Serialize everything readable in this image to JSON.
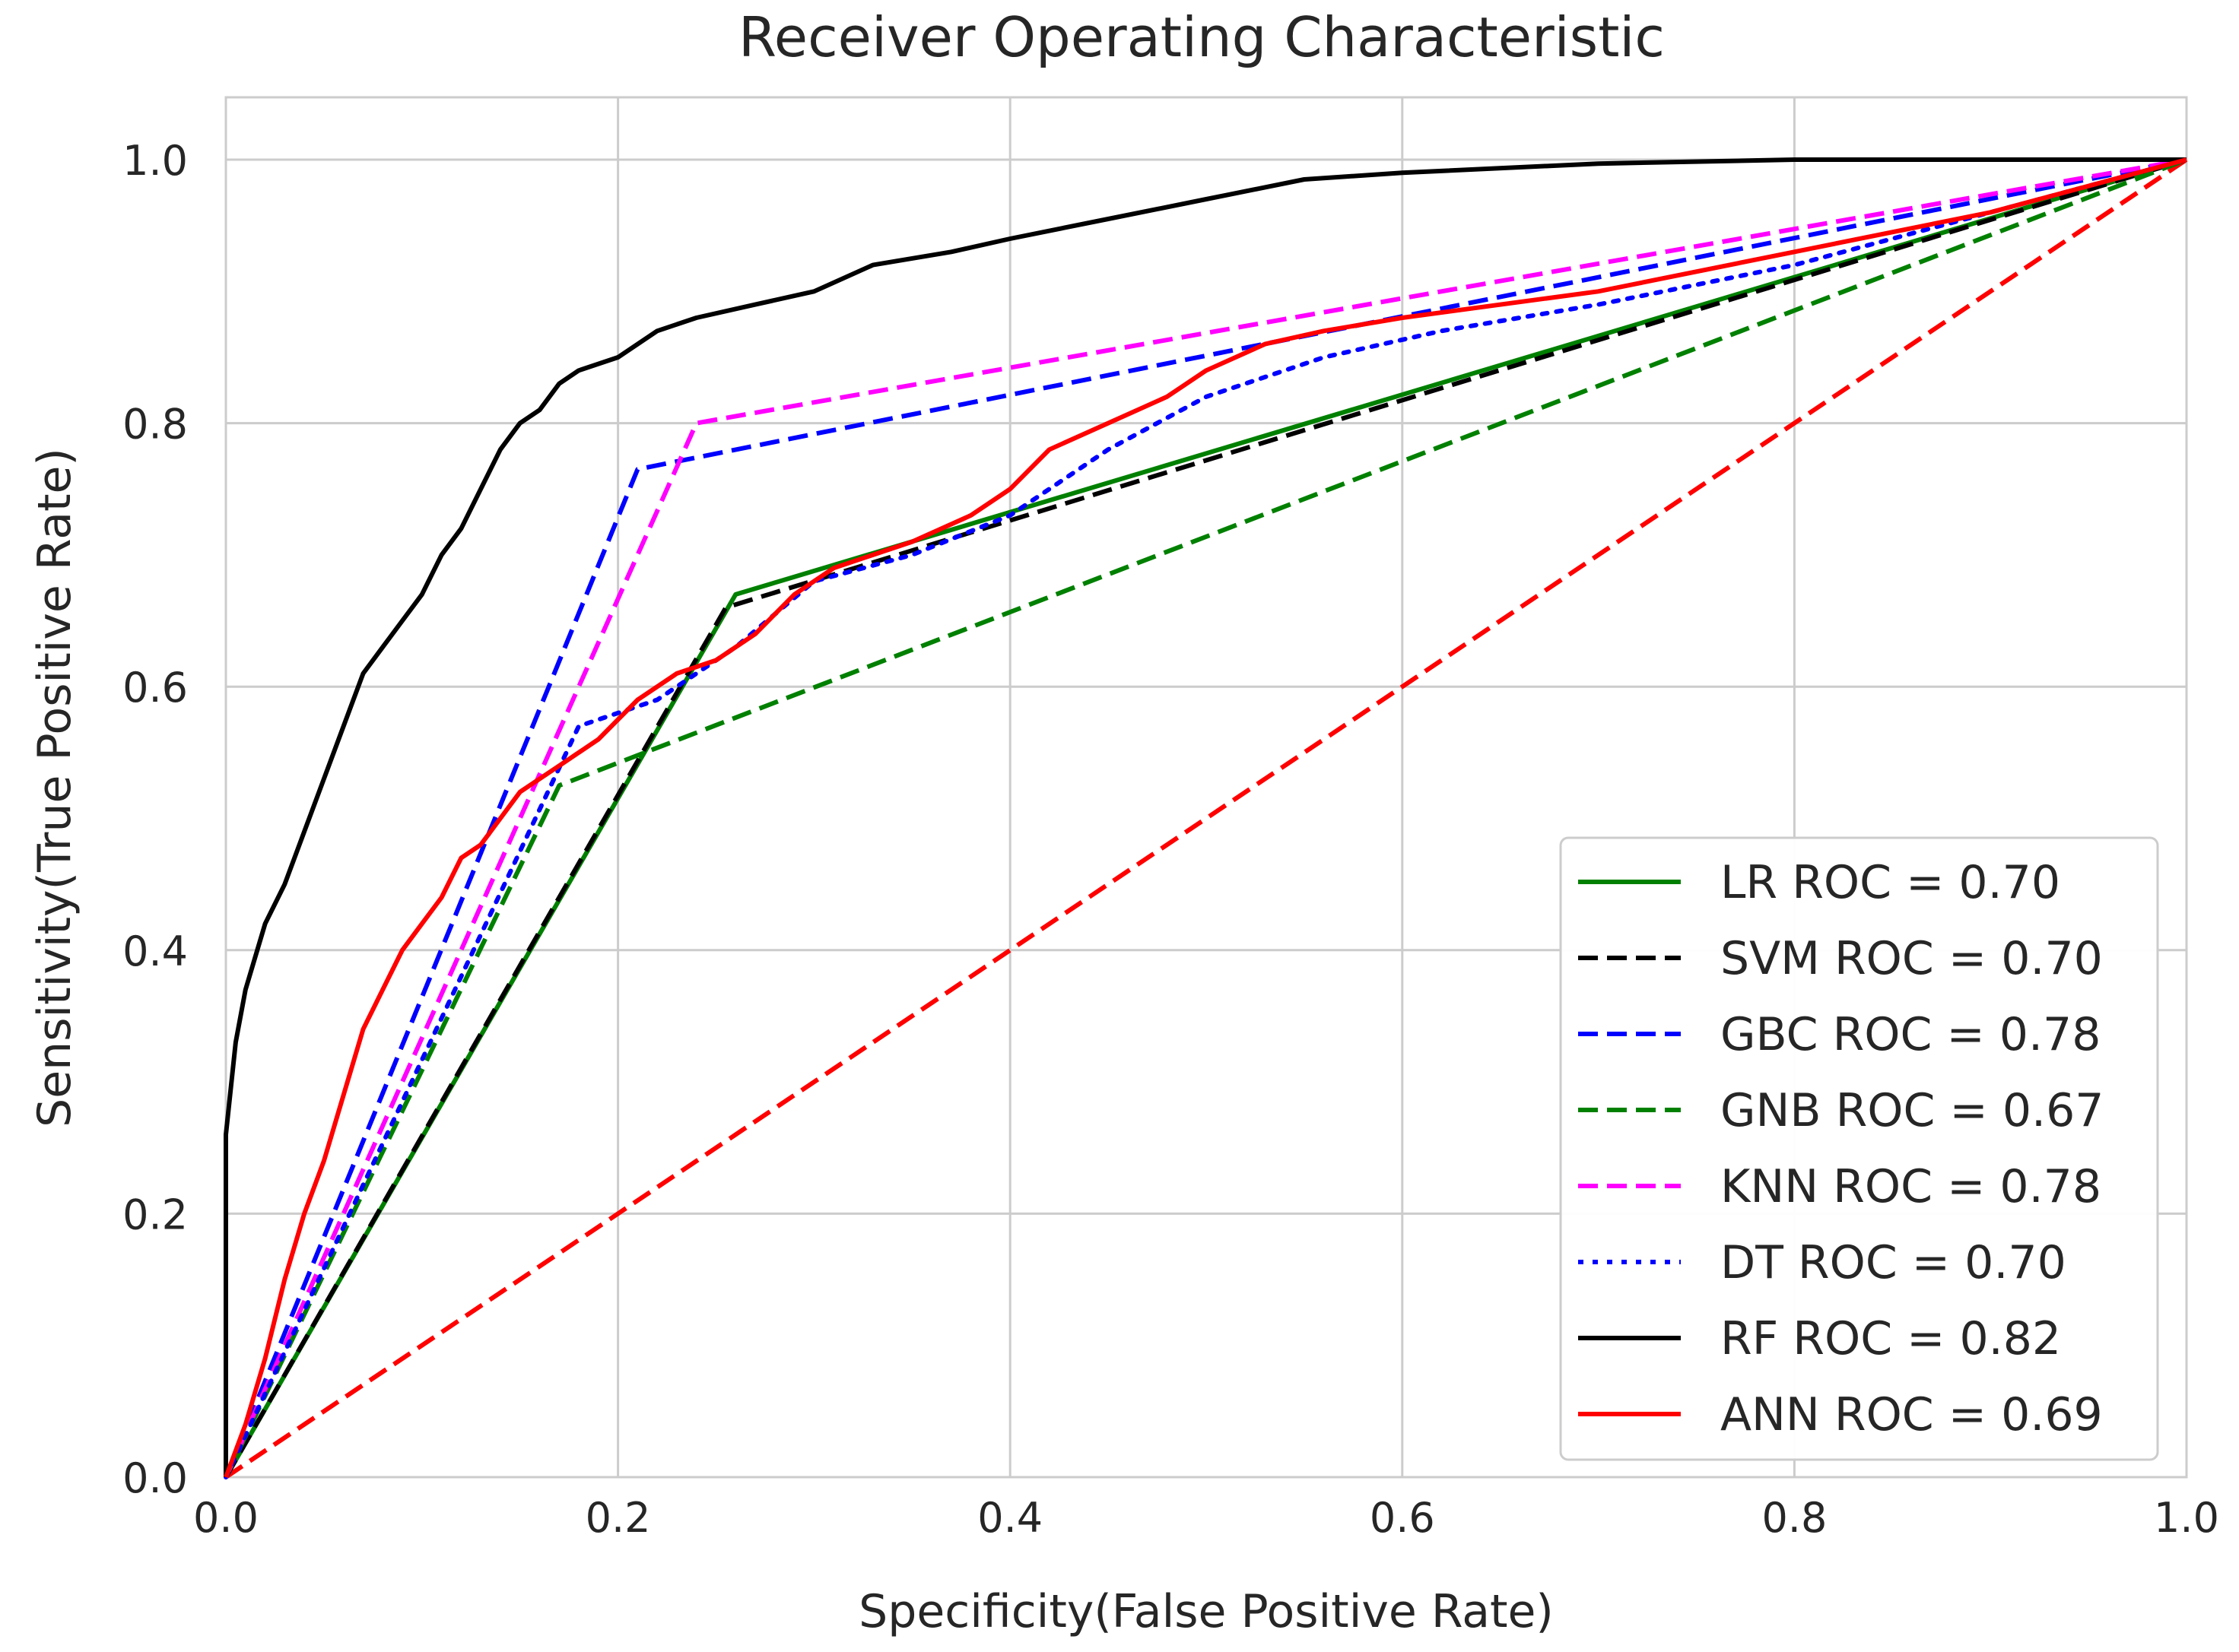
{
  "chart_data": {
    "type": "line",
    "title": "Receiver Operating Characteristic",
    "xlabel": "Specificity(False Positive Rate)",
    "ylabel": "Sensitivity(True Positive Rate)",
    "xlim": [
      0.0,
      1.0
    ],
    "ylim": [
      -0.04,
      1.0
    ],
    "grid": true,
    "legend_position": "lower-right",
    "x_ticks": [
      {
        "value": 0.0,
        "label": "0.0"
      },
      {
        "value": 0.2,
        "label": "0.2"
      },
      {
        "value": 0.4,
        "label": "0.4"
      },
      {
        "value": 0.6,
        "label": "0.6"
      },
      {
        "value": 0.8,
        "label": "0.8"
      },
      {
        "value": 1.0,
        "label": "1.0"
      }
    ],
    "y_ticks": [
      {
        "value": 0.0,
        "label": "0.0"
      },
      {
        "value": 0.2,
        "label": "0.2"
      },
      {
        "value": 0.4,
        "label": "0.4"
      },
      {
        "value": 0.6,
        "label": "0.6"
      },
      {
        "value": 0.8,
        "label": "0.8"
      },
      {
        "value": 1.0,
        "label": "1.0"
      }
    ],
    "series": [
      {
        "name": "LR ROC = 0.70",
        "color": "#008000",
        "style": "solid",
        "x": [
          0.0,
          0.26,
          1.0
        ],
        "y": [
          0.0,
          0.67,
          1.0
        ]
      },
      {
        "name": "SVM ROC = 0.70",
        "color": "#000000",
        "style": "dashed",
        "x": [
          0.0,
          0.255,
          1.0
        ],
        "y": [
          0.0,
          0.66,
          1.0
        ]
      },
      {
        "name": "GBC ROC = 0.78",
        "color": "#0000ff",
        "style": "dashed",
        "x": [
          0.0,
          0.21,
          1.0
        ],
        "y": [
          0.0,
          0.765,
          1.0
        ]
      },
      {
        "name": "GNB ROC = 0.67",
        "color": "#008000",
        "style": "dashed",
        "x": [
          0.0,
          0.17,
          1.0
        ],
        "y": [
          0.0,
          0.525,
          1.0
        ]
      },
      {
        "name": "KNN ROC = 0.78",
        "color": "#ff00ff",
        "style": "dashed",
        "x": [
          0.0,
          0.24,
          1.0
        ],
        "y": [
          0.0,
          0.8,
          1.0
        ]
      },
      {
        "name": "DT ROC = 0.70",
        "color": "#0000ff",
        "style": "dotted",
        "x": [
          0.0,
          0.18,
          0.22,
          0.26,
          0.3,
          0.35,
          0.4,
          0.45,
          0.5,
          0.56,
          0.62,
          0.7,
          0.8,
          0.9,
          1.0
        ],
        "y": [
          0.0,
          0.57,
          0.59,
          0.63,
          0.68,
          0.7,
          0.73,
          0.78,
          0.82,
          0.85,
          0.87,
          0.89,
          0.92,
          0.96,
          1.0
        ]
      },
      {
        "name": "RF ROC = 0.82",
        "color": "#000000",
        "style": "solid",
        "x": [
          0.0,
          0.0,
          0.005,
          0.01,
          0.02,
          0.03,
          0.04,
          0.05,
          0.06,
          0.07,
          0.08,
          0.09,
          0.1,
          0.11,
          0.12,
          0.13,
          0.14,
          0.15,
          0.16,
          0.17,
          0.18,
          0.2,
          0.22,
          0.24,
          0.27,
          0.3,
          0.33,
          0.37,
          0.4,
          0.45,
          0.5,
          0.55,
          0.6,
          0.7,
          0.8,
          0.9,
          1.0
        ],
        "y": [
          0.0,
          0.26,
          0.33,
          0.37,
          0.42,
          0.45,
          0.49,
          0.53,
          0.57,
          0.61,
          0.63,
          0.65,
          0.67,
          0.7,
          0.72,
          0.75,
          0.78,
          0.8,
          0.81,
          0.83,
          0.84,
          0.85,
          0.87,
          0.88,
          0.89,
          0.9,
          0.92,
          0.93,
          0.94,
          0.955,
          0.97,
          0.985,
          0.99,
          0.997,
          1.0,
          1.0,
          1.0
        ]
      },
      {
        "name": "ANN ROC = 0.69",
        "color": "#ff0000",
        "style": "solid",
        "x": [
          0.0,
          0.01,
          0.02,
          0.03,
          0.04,
          0.05,
          0.06,
          0.07,
          0.08,
          0.09,
          0.1,
          0.11,
          0.12,
          0.13,
          0.14,
          0.15,
          0.17,
          0.19,
          0.21,
          0.23,
          0.25,
          0.27,
          0.29,
          0.31,
          0.33,
          0.35,
          0.38,
          0.4,
          0.42,
          0.45,
          0.48,
          0.5,
          0.53,
          0.56,
          0.6,
          0.7,
          0.8,
          0.9,
          1.0
        ],
        "y": [
          0.0,
          0.04,
          0.09,
          0.15,
          0.2,
          0.24,
          0.29,
          0.34,
          0.37,
          0.4,
          0.42,
          0.44,
          0.47,
          0.48,
          0.5,
          0.52,
          0.54,
          0.56,
          0.59,
          0.61,
          0.62,
          0.64,
          0.67,
          0.69,
          0.7,
          0.71,
          0.73,
          0.75,
          0.78,
          0.8,
          0.82,
          0.84,
          0.86,
          0.87,
          0.88,
          0.9,
          0.93,
          0.96,
          1.0
        ]
      },
      {
        "name": "",
        "color": "#ff0000",
        "style": "dashed",
        "legend": false,
        "x": [
          0.0,
          1.0
        ],
        "y": [
          0.0,
          1.0
        ]
      }
    ]
  }
}
